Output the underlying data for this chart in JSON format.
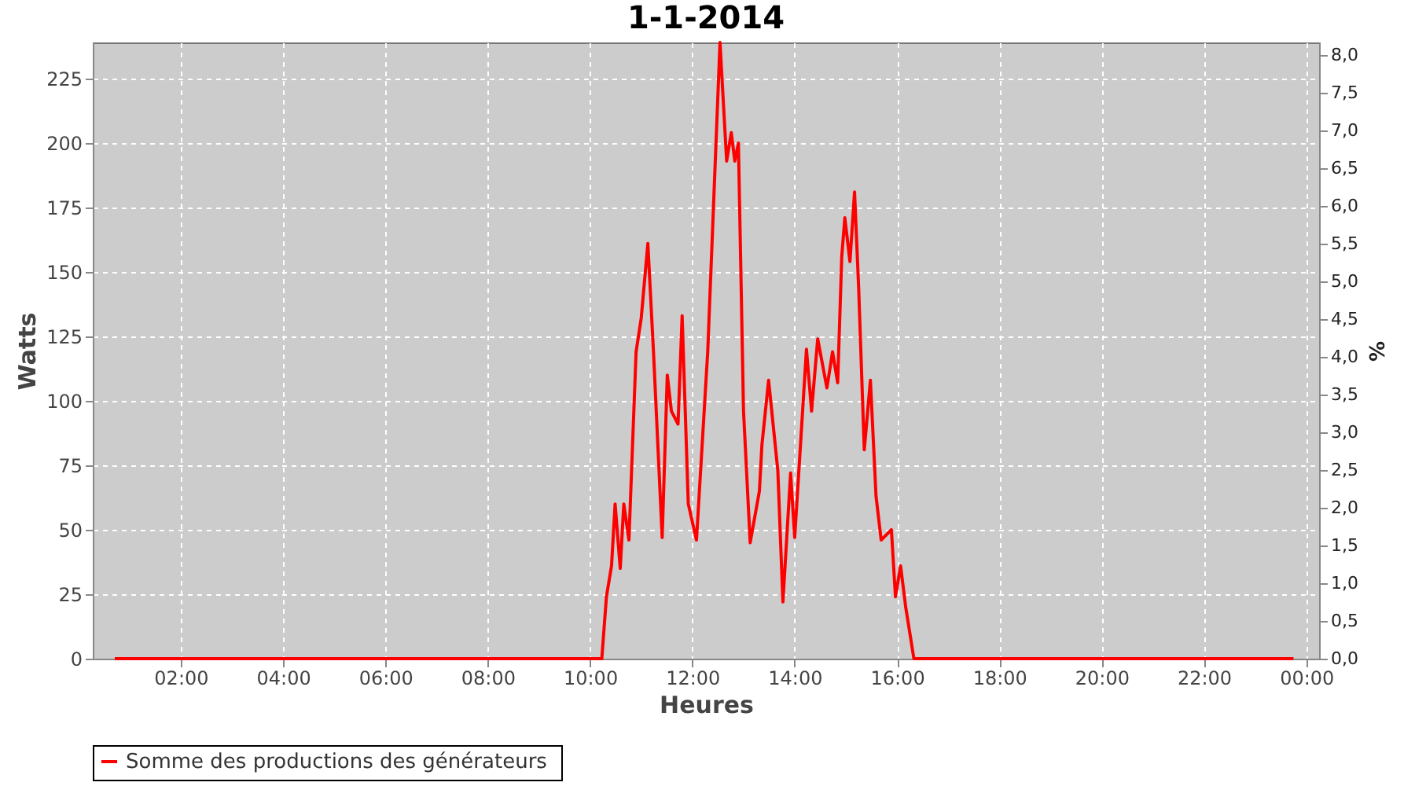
{
  "chart_data": {
    "type": "line",
    "title": "1-1-2014",
    "xlabel": "Heures",
    "ylabel": "Watts",
    "y2label": "%",
    "xlim": [
      0.28,
      24.25
    ],
    "xticks": [
      {
        "value": 2,
        "label": "02:00"
      },
      {
        "value": 4,
        "label": "04:00"
      },
      {
        "value": 6,
        "label": "06:00"
      },
      {
        "value": 8,
        "label": "08:00"
      },
      {
        "value": 10,
        "label": "10:00"
      },
      {
        "value": 12,
        "label": "12:00"
      },
      {
        "value": 14,
        "label": "14:00"
      },
      {
        "value": 16,
        "label": "16:00"
      },
      {
        "value": 18,
        "label": "18:00"
      },
      {
        "value": 20,
        "label": "20:00"
      },
      {
        "value": 22,
        "label": "22:00"
      },
      {
        "value": 24,
        "label": "00:00"
      }
    ],
    "ylim": [
      0,
      239
    ],
    "yticks": [
      0,
      25,
      50,
      75,
      100,
      125,
      150,
      175,
      200,
      225
    ],
    "y2lim": [
      0,
      8.17
    ],
    "y2ticks": [
      {
        "value": 0,
        "label": "0,0"
      },
      {
        "value": 0.5,
        "label": "0,5"
      },
      {
        "value": 1,
        "label": "1,0"
      },
      {
        "value": 1.5,
        "label": "1,5"
      },
      {
        "value": 2,
        "label": "2,0"
      },
      {
        "value": 2.5,
        "label": "2,5"
      },
      {
        "value": 3,
        "label": "3,0"
      },
      {
        "value": 3.5,
        "label": "3,5"
      },
      {
        "value": 4,
        "label": "4,0"
      },
      {
        "value": 4.5,
        "label": "4,5"
      },
      {
        "value": 5,
        "label": "5,0"
      },
      {
        "value": 5.5,
        "label": "5,5"
      },
      {
        "value": 6,
        "label": "6,0"
      },
      {
        "value": 6.5,
        "label": "6,5"
      },
      {
        "value": 7,
        "label": "7,0"
      },
      {
        "value": 7.5,
        "label": "7,5"
      },
      {
        "value": 8,
        "label": "8,0"
      }
    ],
    "grid": true,
    "legend": "bottom",
    "line_style": "solid",
    "series": [
      {
        "name": "Somme des productions des  générateurs",
        "color": "#ff0000",
        "x": [
          0.71,
          3,
          6,
          8,
          10.23,
          10.32,
          10.42,
          10.49,
          10.59,
          10.66,
          10.76,
          10.9,
          11.0,
          11.13,
          11.24,
          11.41,
          11.51,
          11.59,
          11.72,
          11.8,
          11.92,
          12.08,
          12.3,
          12.54,
          12.67,
          12.76,
          12.83,
          12.9,
          13.0,
          13.13,
          13.31,
          13.36,
          13.49,
          13.67,
          13.77,
          13.92,
          14.0,
          14.23,
          14.33,
          14.45,
          14.63,
          14.74,
          14.84,
          14.92,
          14.98,
          15.08,
          15.17,
          15.25,
          15.36,
          15.48,
          15.59,
          15.69,
          15.89,
          15.97,
          16.07,
          16.17,
          16.33,
          18,
          20,
          22,
          23.75
        ],
        "values": [
          0,
          0,
          0,
          0,
          0,
          24,
          36,
          60,
          35,
          60,
          46,
          119,
          132,
          161,
          119,
          47,
          110,
          96,
          91,
          133,
          60,
          46,
          119,
          239,
          193,
          204,
          193,
          200,
          96,
          45,
          65,
          83,
          108,
          73,
          22,
          72,
          47,
          120,
          96,
          124,
          105,
          119,
          107,
          156,
          171,
          154,
          181,
          144,
          81,
          108,
          63,
          46,
          50,
          24,
          36,
          20,
          0,
          0,
          0,
          0,
          0
        ]
      }
    ]
  }
}
